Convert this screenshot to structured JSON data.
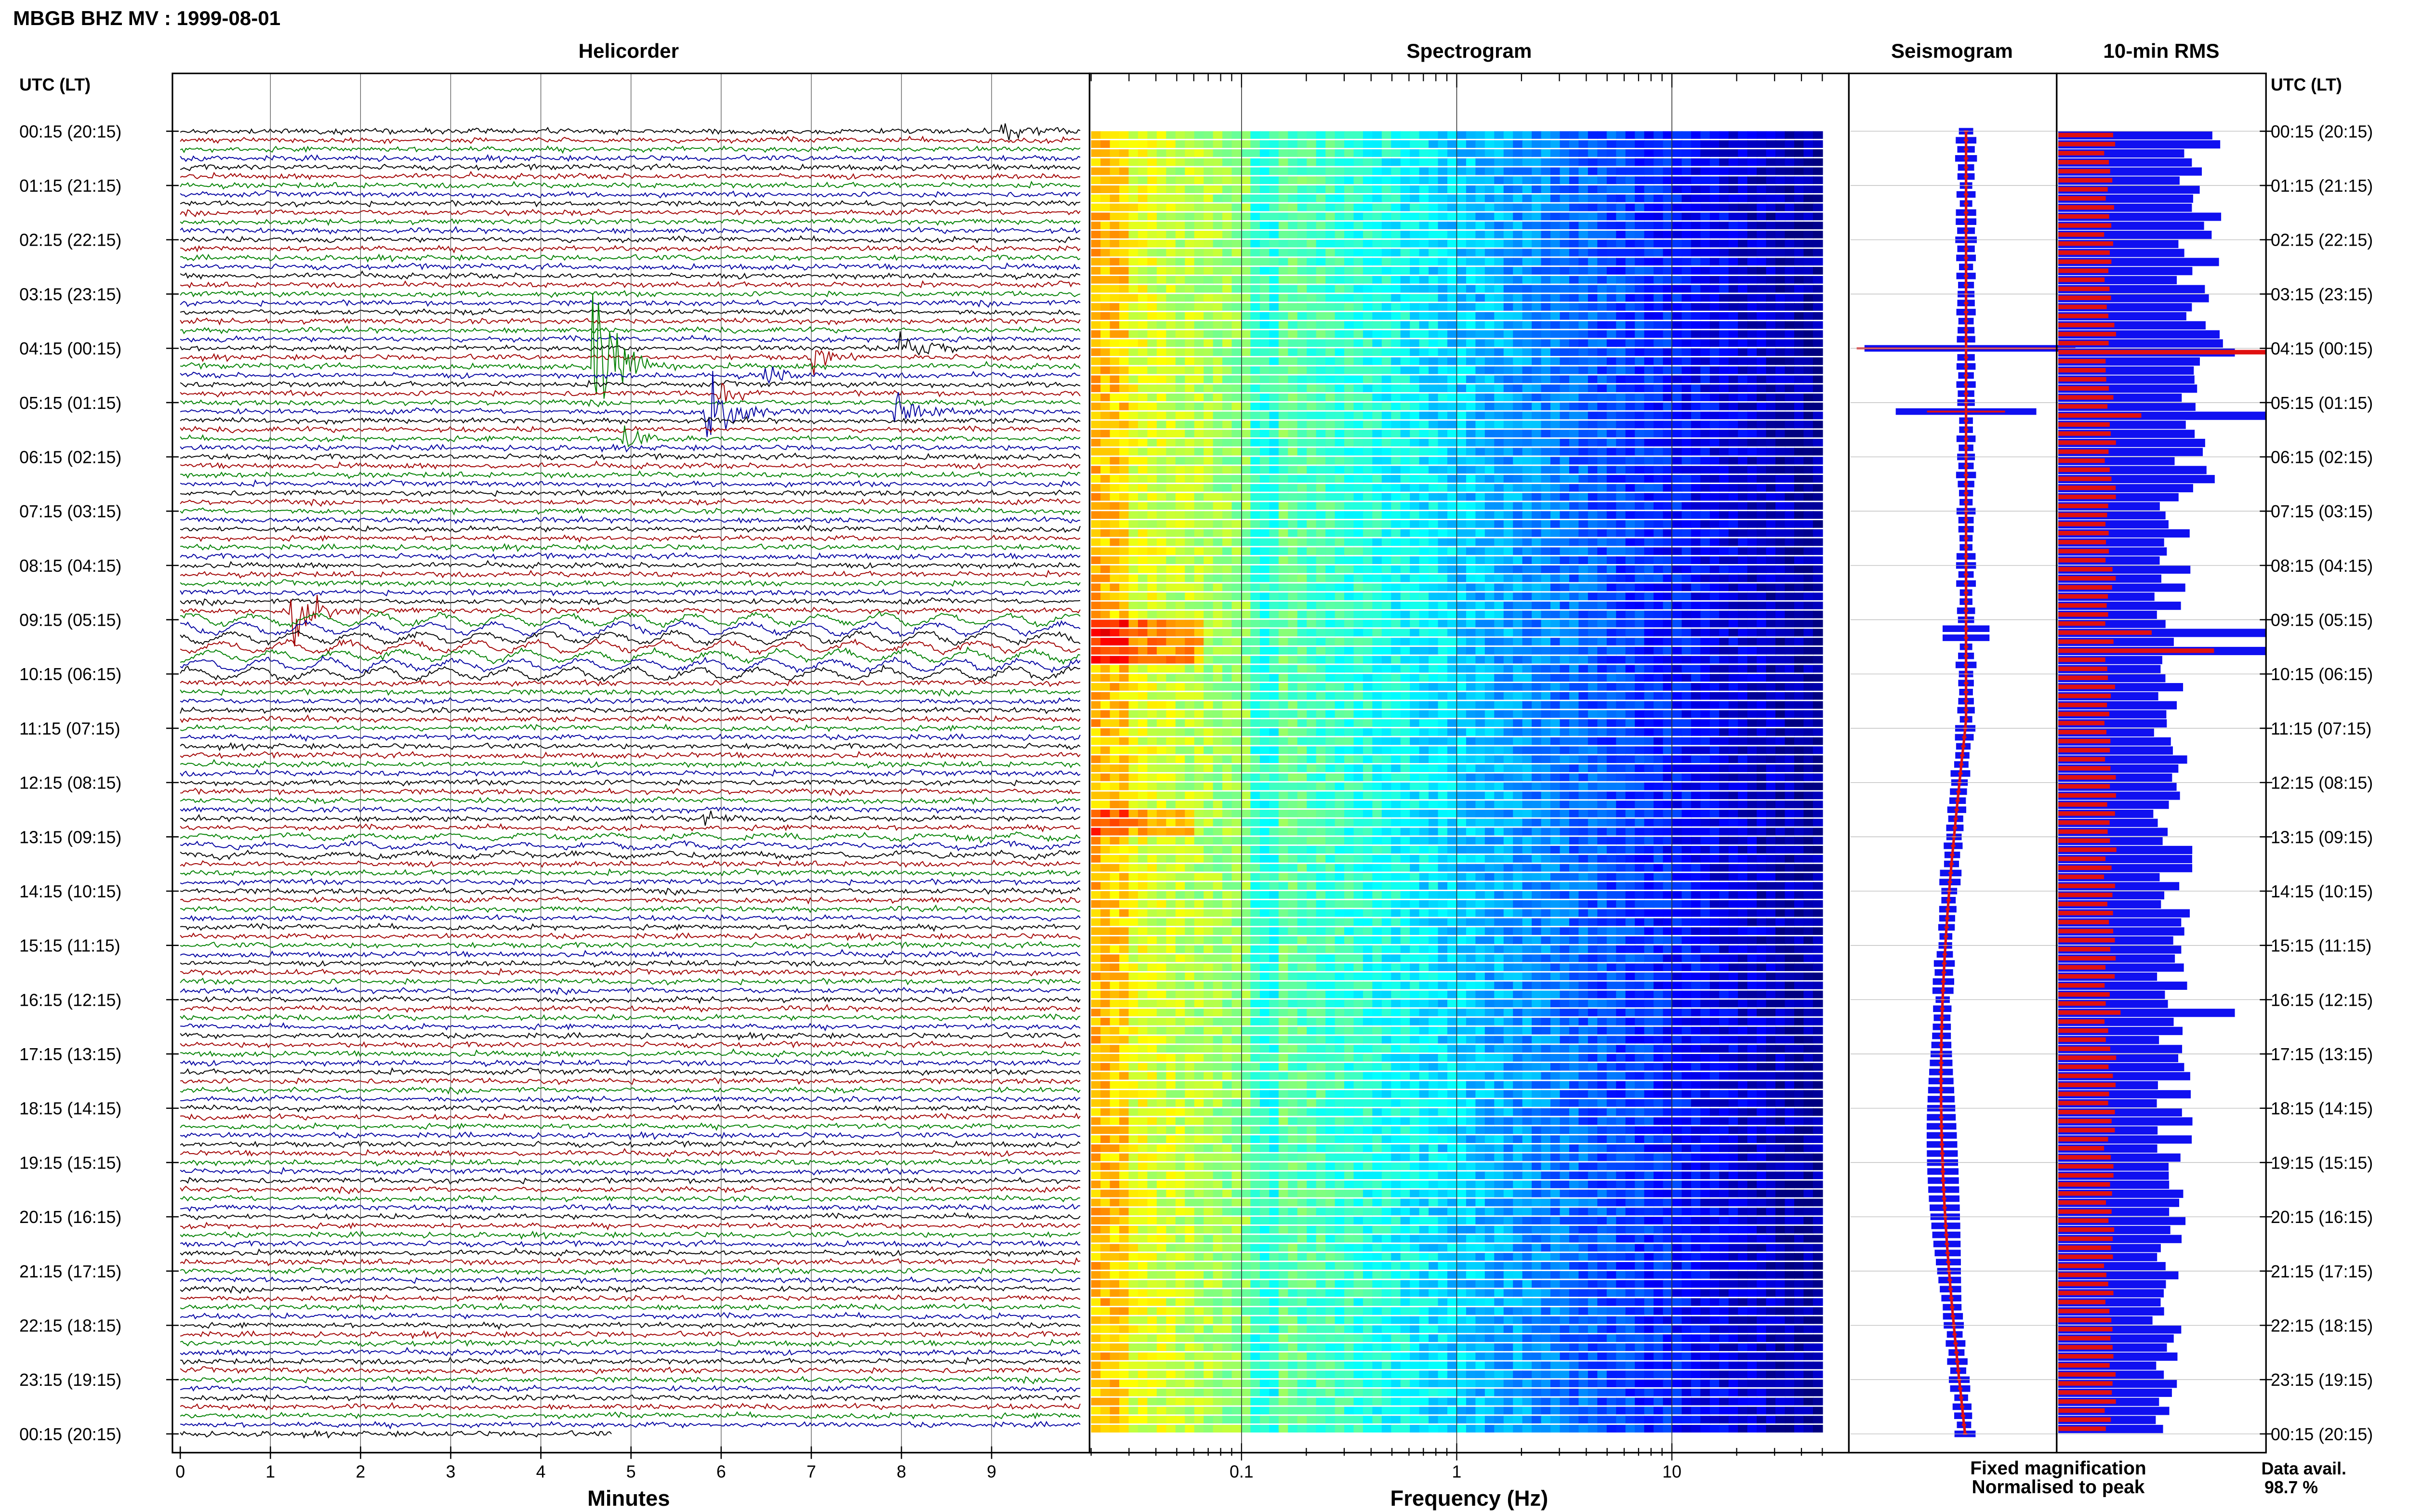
{
  "title": "MBGB BHZ MV : 1999-08-01",
  "utc_lt_label": "UTC (LT)",
  "panels": {
    "helicorder": "Helicorder",
    "spectrogram": "Spectrogram",
    "seismogram": "Seismogram",
    "rms": "10-min RMS"
  },
  "legend": {
    "fixed": "Fixed magnification",
    "normalised": "Normalised to peak",
    "fixed_color": "#1010f0",
    "normalised_color": "#e01010"
  },
  "data_avail": {
    "label": "Data avail.",
    "value": "98.7 %"
  },
  "chart_data": [
    {
      "type": "line",
      "title": "Helicorder",
      "xlabel": "Minutes",
      "ylabel": "UTC (LT)",
      "xlim": [
        0,
        10
      ],
      "x_ticks": [
        "0",
        "1",
        "2",
        "3",
        "4",
        "5",
        "6",
        "7",
        "8",
        "9"
      ],
      "y_ticks": [
        "00:15 (20:15)",
        "01:15 (21:15)",
        "02:15 (22:15)",
        "03:15 (23:15)",
        "04:15 (00:15)",
        "05:15 (01:15)",
        "06:15 (02:15)",
        "07:15 (03:15)",
        "08:15 (04:15)",
        "09:15 (05:15)",
        "10:15 (06:15)",
        "11:15 (07:15)",
        "12:15 (08:15)",
        "13:15 (09:15)",
        "14:15 (10:15)",
        "15:15 (11:15)",
        "16:15 (12:15)",
        "17:15 (13:15)",
        "18:15 (14:15)",
        "19:15 (15:15)",
        "20:15 (16:15)",
        "21:15 (17:15)",
        "22:15 (18:15)",
        "23:15 (19:15)",
        "00:15 (20:15)"
      ],
      "trace_colors": [
        "#000000",
        "#a00000",
        "#008000",
        "#0000a0"
      ],
      "lines_per_hour": 6,
      "events": [
        {
          "line": 0,
          "minute": 9.1,
          "amp": 1.5
        },
        {
          "line": 26,
          "minute": 4.6,
          "amp": 9.0
        },
        {
          "line": 25,
          "minute": 7.0,
          "amp": 1.2
        },
        {
          "line": 24,
          "minute": 8.0,
          "amp": 2.0
        },
        {
          "line": 27,
          "minute": 6.5,
          "amp": 1.0
        },
        {
          "line": 29,
          "minute": 6.0,
          "amp": 1.0
        },
        {
          "line": 31,
          "minute": 5.85,
          "amp": 3.5
        },
        {
          "line": 31,
          "minute": 7.95,
          "amp": 2.0
        },
        {
          "line": 34,
          "minute": 4.9,
          "amp": 1.3
        },
        {
          "line": 53,
          "minute": 1.25,
          "amp": 3.0
        },
        {
          "line": 76,
          "minute": 5.8,
          "amp": 0.9
        }
      ]
    },
    {
      "type": "heatmap",
      "title": "Spectrogram",
      "xlabel": "Frequency (Hz)",
      "x_scale": "log",
      "xlim": [
        0.02,
        50
      ],
      "x_ticks": [
        "0.1",
        "1",
        "10"
      ],
      "colormap": "jet"
    },
    {
      "type": "line",
      "title": "Seismogram",
      "series": [
        {
          "name": "Fixed magnification",
          "color": "#1010f0"
        },
        {
          "name": "Normalised to peak",
          "color": "#e01010"
        }
      ]
    },
    {
      "type": "bar",
      "title": "10-min RMS",
      "series": [
        {
          "name": "Fixed magnification",
          "color": "#1010f0"
        },
        {
          "name": "Normalised to peak",
          "color": "#e01010"
        }
      ],
      "spikes": [
        {
          "line": 24,
          "red": 1.0,
          "blue": 0.85
        },
        {
          "line": 31,
          "red": 0.4,
          "blue": 1.0
        },
        {
          "line": 55,
          "red": 0.45,
          "blue": 1.0
        },
        {
          "line": 57,
          "red": 0.75,
          "blue": 1.0
        },
        {
          "line": 97,
          "red": 0.3,
          "blue": 0.85
        }
      ]
    }
  ]
}
